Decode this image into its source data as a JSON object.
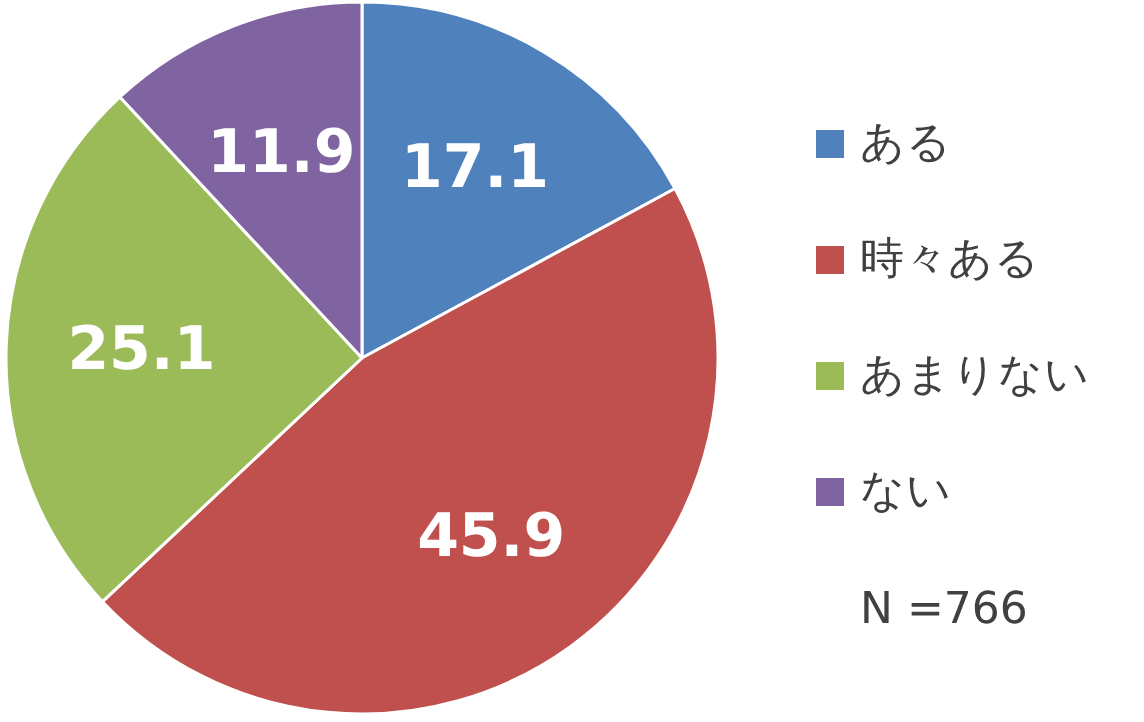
{
  "chart_data": {
    "type": "pie",
    "categories": [
      "ある",
      "時々ある",
      "あまりない",
      "ない"
    ],
    "values": [
      17.1,
      45.9,
      25.1,
      11.9
    ],
    "colors": [
      "#4f81bd",
      "#c0504d",
      "#9bbb59",
      "#8064a2"
    ],
    "data_labels": true,
    "legend": "right",
    "annotations": [
      "N =766"
    ]
  }
}
